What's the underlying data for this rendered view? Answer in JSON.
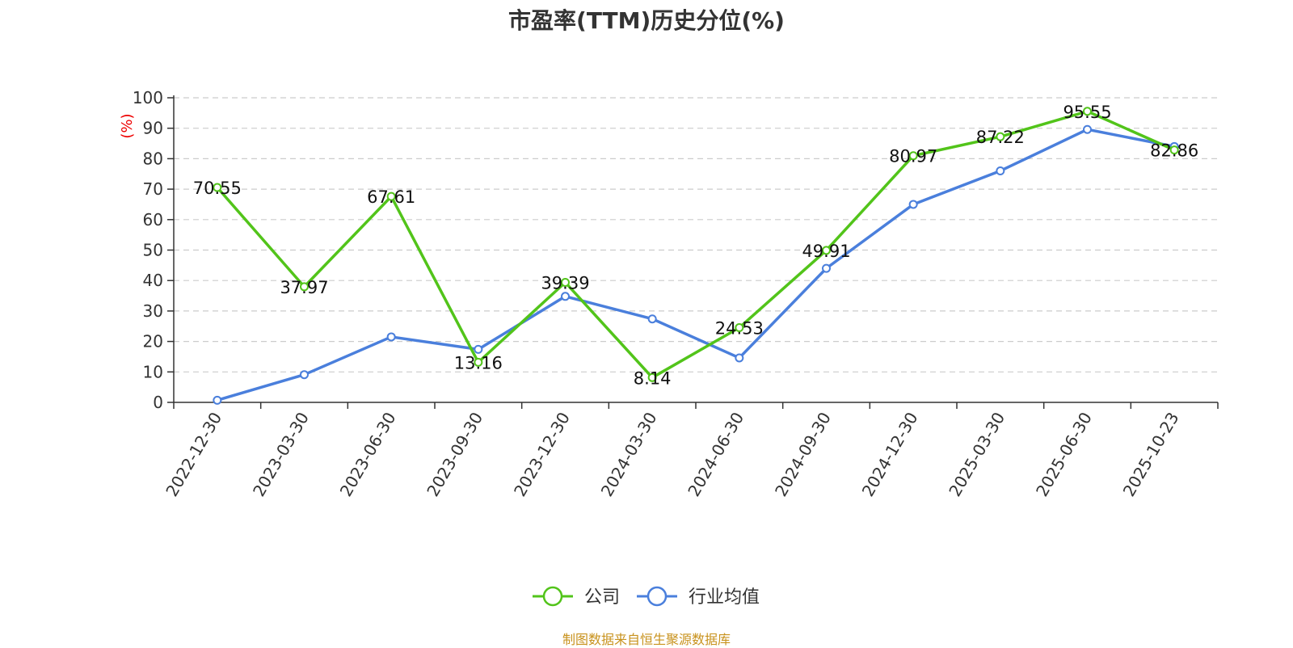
{
  "chart_data": {
    "type": "line",
    "title": "市盈率(TTM)历史分位(%)",
    "ylabel": "(%)",
    "xlabel": "",
    "ylim": [
      0,
      100
    ],
    "yticks": [
      0,
      10,
      20,
      30,
      40,
      50,
      60,
      70,
      80,
      90,
      100
    ],
    "grid": true,
    "legend_position": "bottom-center",
    "categories": [
      "2022-12-30",
      "2023-03-30",
      "2023-06-30",
      "2023-09-30",
      "2023-12-30",
      "2024-03-30",
      "2024-06-30",
      "2024-09-30",
      "2024-12-30",
      "2025-03-30",
      "2025-06-30",
      "2025-10-23"
    ],
    "series": [
      {
        "name": "公司",
        "color": "#52c41a",
        "values": [
          70.55,
          37.97,
          67.61,
          13.16,
          39.39,
          8.14,
          24.53,
          49.91,
          80.97,
          87.22,
          95.55,
          82.86
        ],
        "labels": [
          "70.55",
          "37.97",
          "67.61",
          "13.16",
          "39.39",
          "8.14",
          "24.53",
          "49.91",
          "80.97",
          "87.22",
          "95.55",
          "82.86"
        ]
      },
      {
        "name": "行业均值",
        "color": "#4a7fdc",
        "values": [
          0.7,
          9.1,
          21.5,
          17.4,
          34.8,
          27.4,
          14.6,
          44.0,
          65.0,
          76.0,
          89.6,
          84.0
        ]
      }
    ]
  },
  "source": "制图数据来自恒生聚源数据库"
}
